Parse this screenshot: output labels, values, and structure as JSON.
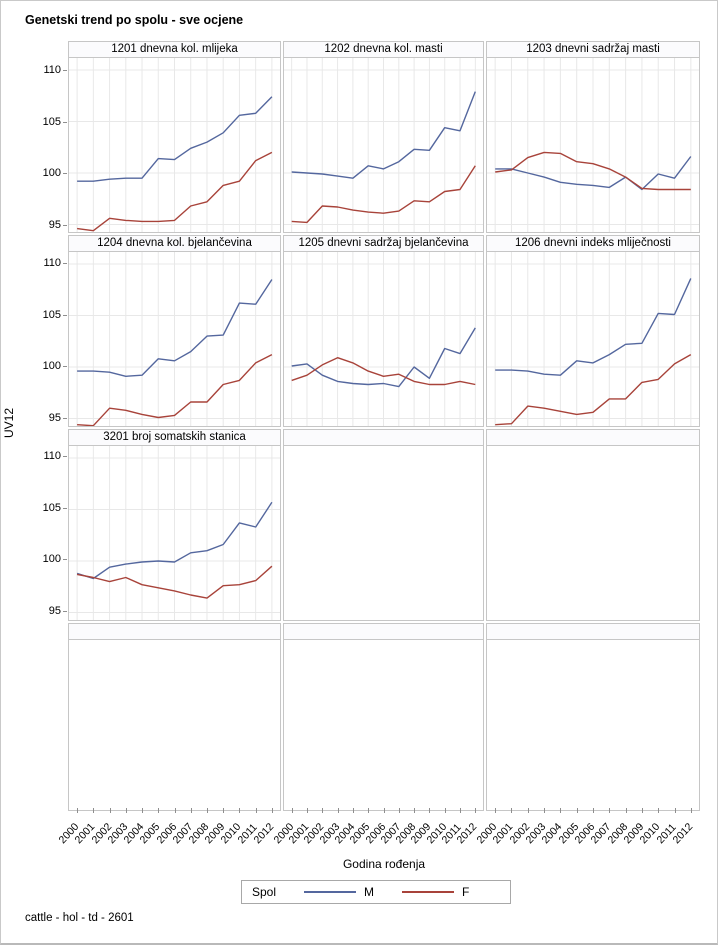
{
  "title": "Genetski trend po spolu - sve ocjene",
  "footer": "cattle - hol - td - 2601",
  "y_axis": {
    "label": "UV12",
    "ticks": [
      110,
      105,
      100,
      95
    ]
  },
  "x_axis": {
    "label": "Godina rođenja",
    "years": [
      "2000",
      "2001",
      "2002",
      "2003",
      "2004",
      "2005",
      "2006",
      "2007",
      "2008",
      "2009",
      "2010",
      "2011",
      "2012"
    ]
  },
  "legend": {
    "title": "Spol",
    "entries": [
      {
        "label": "M",
        "color": "#54679e"
      },
      {
        "label": "F",
        "color": "#a8433a"
      }
    ]
  },
  "colors": {
    "male_line": "#54679e",
    "female_line": "#a8433a",
    "gridline": "#e8e8e8",
    "panel_border": "#c6c6c6",
    "header_bg": "#fbfbfd"
  },
  "layout_hints": {
    "grid_rows": 4,
    "grid_cols": 3,
    "cell_panel_map": [
      0,
      1,
      2,
      3,
      4,
      5,
      6,
      -1,
      -1,
      -1,
      -1,
      -1
    ],
    "ylim": [
      94.0,
      111.5
    ],
    "grid_on": true,
    "legend_position": "bottom"
  },
  "chart_data": [
    {
      "type": "line",
      "title": "1201 dnevna kol. mlijeka",
      "x": [
        "2000",
        "2001",
        "2002",
        "2003",
        "2004",
        "2005",
        "2006",
        "2007",
        "2008",
        "2009",
        "2010",
        "2011",
        "2012"
      ],
      "series": [
        {
          "name": "M",
          "values": [
            99.2,
            99.2,
            99.4,
            99.5,
            99.5,
            101.4,
            101.3,
            102.4,
            103.0,
            103.9,
            105.6,
            105.8,
            107.4
          ]
        },
        {
          "name": "F",
          "values": [
            94.6,
            94.4,
            95.6,
            95.4,
            95.3,
            95.3,
            95.4,
            96.8,
            97.2,
            98.8,
            99.2,
            101.2,
            102.0
          ]
        }
      ]
    },
    {
      "type": "line",
      "title": "1202 dnevna kol. masti",
      "x": [
        "2000",
        "2001",
        "2002",
        "2003",
        "2004",
        "2005",
        "2006",
        "2007",
        "2008",
        "2009",
        "2010",
        "2011",
        "2012"
      ],
      "series": [
        {
          "name": "M",
          "values": [
            100.1,
            100.0,
            99.9,
            99.7,
            99.5,
            100.7,
            100.4,
            101.1,
            102.3,
            102.2,
            104.4,
            104.1,
            107.9
          ]
        },
        {
          "name": "F",
          "values": [
            95.3,
            95.2,
            96.8,
            96.7,
            96.4,
            96.2,
            96.1,
            96.3,
            97.3,
            97.2,
            98.2,
            98.4,
            100.7
          ]
        }
      ]
    },
    {
      "type": "line",
      "title": "1203 dnevni sadržaj masti",
      "x": [
        "2000",
        "2001",
        "2002",
        "2003",
        "2004",
        "2005",
        "2006",
        "2007",
        "2008",
        "2009",
        "2010",
        "2011",
        "2012"
      ],
      "series": [
        {
          "name": "M",
          "values": [
            100.4,
            100.4,
            100.0,
            99.6,
            99.1,
            98.9,
            98.8,
            98.6,
            99.6,
            98.4,
            99.9,
            99.5,
            101.6
          ]
        },
        {
          "name": "F",
          "values": [
            100.1,
            100.3,
            101.5,
            102.0,
            101.9,
            101.1,
            100.9,
            100.4,
            99.6,
            98.5,
            98.4,
            98.4,
            98.4
          ]
        }
      ]
    },
    {
      "type": "line",
      "title": "1204 dnevna kol. bjelančevina",
      "x": [
        "2000",
        "2001",
        "2002",
        "2003",
        "2004",
        "2005",
        "2006",
        "2007",
        "2008",
        "2009",
        "2010",
        "2011",
        "2012"
      ],
      "series": [
        {
          "name": "M",
          "values": [
            99.6,
            99.6,
            99.5,
            99.1,
            99.2,
            100.8,
            100.6,
            101.5,
            103.0,
            103.1,
            106.2,
            106.1,
            108.5
          ]
        },
        {
          "name": "F",
          "values": [
            94.4,
            94.3,
            96.0,
            95.8,
            95.4,
            95.1,
            95.3,
            96.6,
            96.6,
            98.3,
            98.7,
            100.4,
            101.2
          ]
        }
      ]
    },
    {
      "type": "line",
      "title": "1205 dnevni sadržaj bjelančevina",
      "x": [
        "2000",
        "2001",
        "2002",
        "2003",
        "2004",
        "2005",
        "2006",
        "2007",
        "2008",
        "2009",
        "2010",
        "2011",
        "2012"
      ],
      "series": [
        {
          "name": "M",
          "values": [
            100.1,
            100.3,
            99.2,
            98.6,
            98.4,
            98.3,
            98.4,
            98.1,
            100.0,
            98.9,
            101.8,
            101.3,
            103.8
          ]
        },
        {
          "name": "F",
          "values": [
            98.7,
            99.2,
            100.2,
            100.9,
            100.4,
            99.6,
            99.1,
            99.3,
            98.6,
            98.3,
            98.3,
            98.6,
            98.3
          ]
        }
      ]
    },
    {
      "type": "line",
      "title": "1206 dnevni indeks mliječnosti",
      "x": [
        "2000",
        "2001",
        "2002",
        "2003",
        "2004",
        "2005",
        "2006",
        "2007",
        "2008",
        "2009",
        "2010",
        "2011",
        "2012"
      ],
      "series": [
        {
          "name": "M",
          "values": [
            99.7,
            99.7,
            99.6,
            99.3,
            99.2,
            100.6,
            100.4,
            101.2,
            102.2,
            102.3,
            105.2,
            105.1,
            108.6
          ]
        },
        {
          "name": "F",
          "values": [
            94.4,
            94.5,
            96.2,
            96.0,
            95.7,
            95.4,
            95.6,
            96.9,
            96.9,
            98.5,
            98.8,
            100.3,
            101.2
          ]
        }
      ]
    },
    {
      "type": "line",
      "title": "3201 broj somatskih stanica",
      "x": [
        "2000",
        "2001",
        "2002",
        "2003",
        "2004",
        "2005",
        "2006",
        "2007",
        "2008",
        "2009",
        "2010",
        "2011",
        "2012"
      ],
      "series": [
        {
          "name": "M",
          "values": [
            98.8,
            98.3,
            99.4,
            99.7,
            99.9,
            100.0,
            99.9,
            100.8,
            101.0,
            101.6,
            103.7,
            103.3,
            105.7
          ]
        },
        {
          "name": "F",
          "values": [
            98.7,
            98.4,
            98.0,
            98.4,
            97.7,
            97.4,
            97.1,
            96.7,
            96.4,
            97.6,
            97.7,
            98.1,
            99.5
          ]
        }
      ]
    }
  ]
}
